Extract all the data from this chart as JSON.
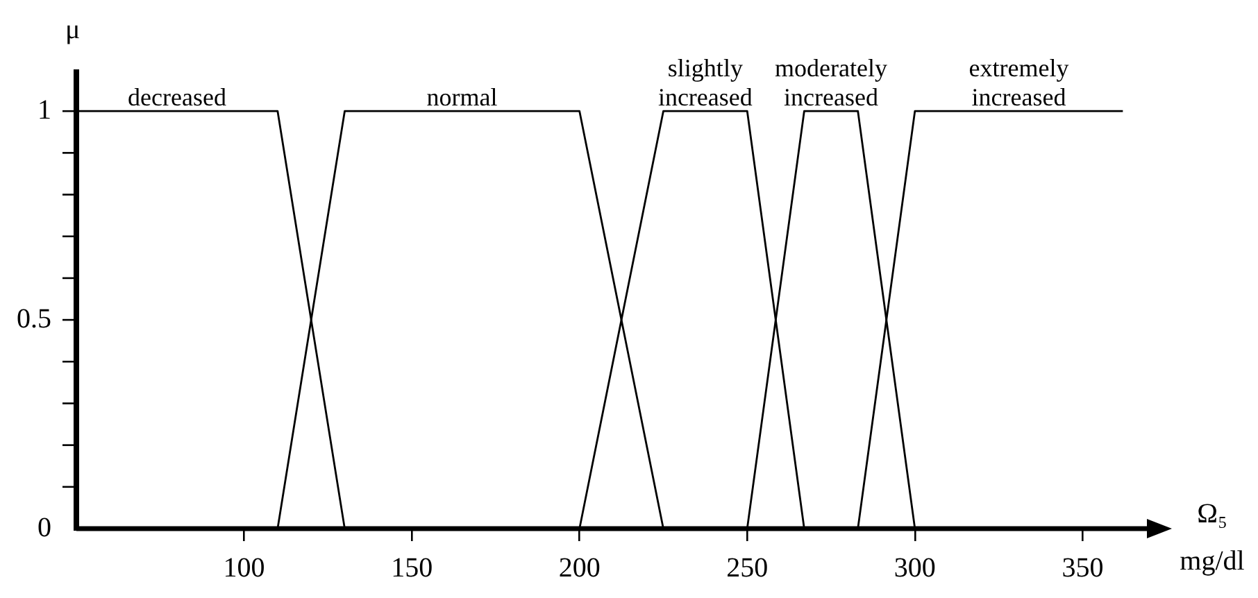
{
  "chart_data": {
    "type": "line",
    "xlabel": "Ω₅ mg/dl",
    "ylabel": "μ",
    "xlim": [
      50,
      370
    ],
    "xticks": [
      100,
      150,
      200,
      250,
      300,
      350
    ],
    "ylim": [
      0,
      1.1
    ],
    "yticks": [
      0,
      {
        "value": 0.1,
        "label": null
      },
      {
        "value": 0.2,
        "label": null
      },
      {
        "value": 0.3,
        "label": null
      },
      {
        "value": 0.4,
        "label": null
      },
      0.5,
      {
        "value": 0.6,
        "label": null
      },
      {
        "value": 0.7,
        "label": null
      },
      {
        "value": 0.8,
        "label": null
      },
      {
        "value": 0.9,
        "label": null
      },
      1
    ],
    "grid": false,
    "legend": false,
    "marker": "none",
    "line_style": "solid",
    "series": [
      {
        "name": "decreased",
        "color": "#000000",
        "x": [
          50,
          110,
          130
        ],
        "values": [
          1,
          1,
          0
        ]
      },
      {
        "name": "normal",
        "color": "#000000",
        "x": [
          110,
          130,
          200,
          225
        ],
        "values": [
          0,
          1,
          1,
          0
        ]
      },
      {
        "name": "slightly increased",
        "color": "#000000",
        "x": [
          200,
          225,
          250,
          267
        ],
        "values": [
          0,
          1,
          1,
          0
        ]
      },
      {
        "name": "moderately increased",
        "color": "#000000",
        "x": [
          250,
          267,
          283,
          300
        ],
        "values": [
          0,
          1,
          1,
          0
        ]
      },
      {
        "name": "extremely increased",
        "color": "#000000",
        "x": [
          283,
          300,
          362
        ],
        "values": [
          0,
          1,
          1
        ]
      }
    ]
  }
}
